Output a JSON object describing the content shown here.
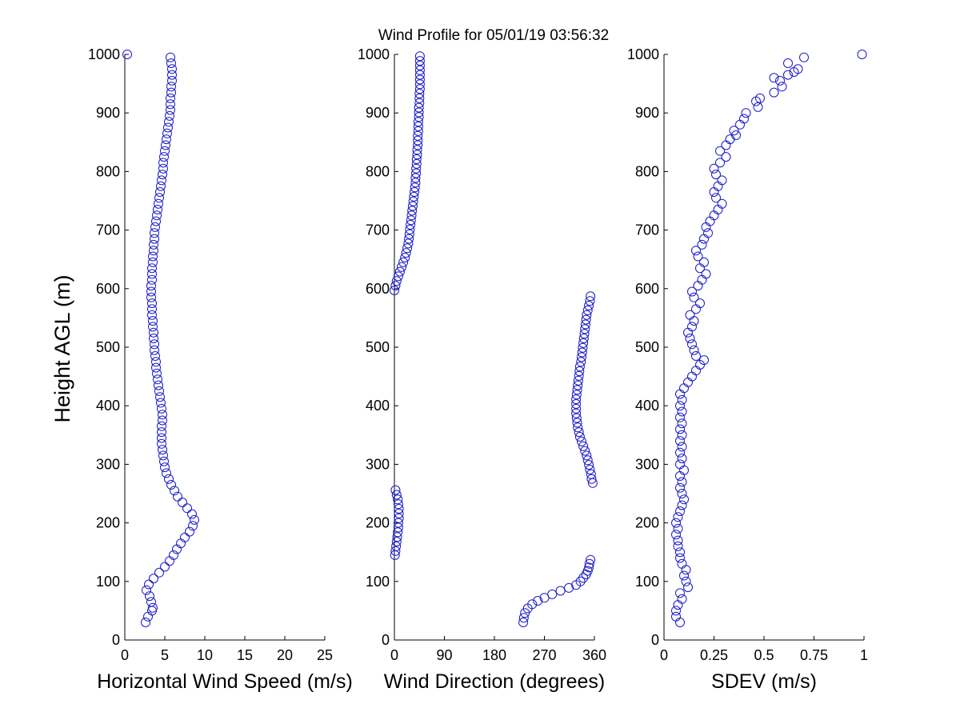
{
  "title": "Wind Profile for  05/01/19 03:56:32",
  "ylabel": "Height AGL (m)",
  "colors": {
    "marker": "#1a1ac8",
    "axis": "#000000",
    "background": "#ffffff"
  },
  "chart_data": [
    {
      "type": "scatter",
      "xlabel": "Horizontal Wind Speed (m/s)",
      "xlim": [
        0,
        25
      ],
      "ylim": [
        0,
        1000
      ],
      "xticks": [
        0,
        5,
        10,
        15,
        20,
        25
      ],
      "yticks": [
        0,
        100,
        200,
        300,
        400,
        500,
        600,
        700,
        800,
        900,
        1000
      ],
      "grid": false,
      "marker": "open-circle",
      "points": [
        [
          2.6,
          30
        ],
        [
          2.9,
          40
        ],
        [
          3.4,
          50
        ],
        [
          3.5,
          55
        ],
        [
          3.3,
          65
        ],
        [
          3.1,
          75
        ],
        [
          2.7,
          85
        ],
        [
          3.0,
          95
        ],
        [
          3.6,
          105
        ],
        [
          4.3,
          115
        ],
        [
          5.0,
          125
        ],
        [
          5.6,
          135
        ],
        [
          6.1,
          145
        ],
        [
          6.5,
          155
        ],
        [
          7.0,
          165
        ],
        [
          7.5,
          175
        ],
        [
          8.1,
          185
        ],
        [
          8.5,
          195
        ],
        [
          8.7,
          205
        ],
        [
          8.4,
          215
        ],
        [
          7.8,
          225
        ],
        [
          7.2,
          235
        ],
        [
          6.6,
          245
        ],
        [
          6.2,
          255
        ],
        [
          5.8,
          265
        ],
        [
          5.5,
          275
        ],
        [
          5.2,
          285
        ],
        [
          5.0,
          295
        ],
        [
          4.9,
          305
        ],
        [
          4.8,
          315
        ],
        [
          4.7,
          325
        ],
        [
          4.6,
          335
        ],
        [
          4.6,
          345
        ],
        [
          4.6,
          355
        ],
        [
          4.6,
          365
        ],
        [
          4.7,
          375
        ],
        [
          4.7,
          385
        ],
        [
          4.6,
          395
        ],
        [
          4.5,
          405
        ],
        [
          4.4,
          415
        ],
        [
          4.3,
          425
        ],
        [
          4.2,
          435
        ],
        [
          4.1,
          445
        ],
        [
          4.0,
          455
        ],
        [
          3.9,
          465
        ],
        [
          3.9,
          475
        ],
        [
          3.8,
          485
        ],
        [
          3.7,
          495
        ],
        [
          3.7,
          505
        ],
        [
          3.6,
          515
        ],
        [
          3.6,
          525
        ],
        [
          3.5,
          535
        ],
        [
          3.5,
          545
        ],
        [
          3.4,
          555
        ],
        [
          3.4,
          565
        ],
        [
          3.4,
          575
        ],
        [
          3.3,
          585
        ],
        [
          3.3,
          595
        ],
        [
          3.3,
          605
        ],
        [
          3.4,
          615
        ],
        [
          3.4,
          625
        ],
        [
          3.4,
          635
        ],
        [
          3.5,
          645
        ],
        [
          3.5,
          655
        ],
        [
          3.6,
          665
        ],
        [
          3.6,
          675
        ],
        [
          3.7,
          685
        ],
        [
          3.7,
          695
        ],
        [
          3.8,
          705
        ],
        [
          3.9,
          715
        ],
        [
          4.0,
          725
        ],
        [
          4.1,
          735
        ],
        [
          4.2,
          745
        ],
        [
          4.3,
          755
        ],
        [
          4.4,
          765
        ],
        [
          4.5,
          775
        ],
        [
          4.6,
          785
        ],
        [
          4.7,
          795
        ],
        [
          4.8,
          805
        ],
        [
          4.8,
          815
        ],
        [
          4.9,
          825
        ],
        [
          5.0,
          835
        ],
        [
          5.1,
          845
        ],
        [
          5.2,
          855
        ],
        [
          5.3,
          865
        ],
        [
          5.4,
          875
        ],
        [
          5.5,
          885
        ],
        [
          5.6,
          895
        ],
        [
          5.7,
          905
        ],
        [
          5.7,
          915
        ],
        [
          5.7,
          925
        ],
        [
          5.8,
          935
        ],
        [
          5.8,
          945
        ],
        [
          5.9,
          955
        ],
        [
          5.9,
          965
        ],
        [
          5.9,
          975
        ],
        [
          5.8,
          985
        ],
        [
          5.7,
          995
        ],
        [
          0.3,
          1000
        ]
      ]
    },
    {
      "type": "scatter",
      "xlabel": "Wind Direction (degrees)",
      "xlim": [
        0,
        360
      ],
      "ylim": [
        0,
        1000
      ],
      "xticks": [
        0,
        90,
        180,
        270,
        360
      ],
      "yticks": [
        0,
        100,
        200,
        300,
        400,
        500,
        600,
        700,
        800,
        900,
        1000
      ],
      "grid": false,
      "marker": "open-circle",
      "points": [
        [
          232,
          30
        ],
        [
          233,
          38
        ],
        [
          235,
          46
        ],
        [
          240,
          54
        ],
        [
          248,
          61
        ],
        [
          258,
          67
        ],
        [
          270,
          72
        ],
        [
          284,
          78
        ],
        [
          299,
          84
        ],
        [
          314,
          89
        ],
        [
          327,
          94
        ],
        [
          335,
          100
        ],
        [
          340,
          106
        ],
        [
          345,
          112
        ],
        [
          348,
          118
        ],
        [
          350,
          124
        ],
        [
          351,
          130
        ],
        [
          353,
          137
        ],
        [
          1,
          145
        ],
        [
          2,
          152
        ],
        [
          3,
          160
        ],
        [
          4,
          168
        ],
        [
          5,
          176
        ],
        [
          6,
          184
        ],
        [
          7,
          192
        ],
        [
          7,
          200
        ],
        [
          8,
          208
        ],
        [
          8,
          216
        ],
        [
          8,
          224
        ],
        [
          7,
          232
        ],
        [
          6,
          240
        ],
        [
          4,
          248
        ],
        [
          2,
          256
        ],
        [
          357,
          268
        ],
        [
          355,
          275
        ],
        [
          354,
          283
        ],
        [
          352,
          291
        ],
        [
          350,
          299
        ],
        [
          348,
          307
        ],
        [
          346,
          315
        ],
        [
          343,
          323
        ],
        [
          340,
          331
        ],
        [
          337,
          339
        ],
        [
          334,
          347
        ],
        [
          332,
          355
        ],
        [
          330,
          363
        ],
        [
          329,
          371
        ],
        [
          328,
          379
        ],
        [
          327,
          387
        ],
        [
          327,
          395
        ],
        [
          327,
          403
        ],
        [
          327,
          411
        ],
        [
          328,
          419
        ],
        [
          329,
          427
        ],
        [
          330,
          435
        ],
        [
          331,
          443
        ],
        [
          332,
          451
        ],
        [
          333,
          459
        ],
        [
          334,
          467
        ],
        [
          336,
          475
        ],
        [
          337,
          483
        ],
        [
          338,
          491
        ],
        [
          339,
          499
        ],
        [
          340,
          507
        ],
        [
          341,
          515
        ],
        [
          342,
          523
        ],
        [
          343,
          531
        ],
        [
          344,
          539
        ],
        [
          345,
          547
        ],
        [
          346,
          555
        ],
        [
          348,
          563
        ],
        [
          350,
          571
        ],
        [
          352,
          579
        ],
        [
          353,
          587
        ],
        [
          0,
          597
        ],
        [
          2,
          605
        ],
        [
          4,
          613
        ],
        [
          7,
          621
        ],
        [
          10,
          629
        ],
        [
          13,
          637
        ],
        [
          16,
          645
        ],
        [
          19,
          653
        ],
        [
          21,
          661
        ],
        [
          23,
          669
        ],
        [
          25,
          677
        ],
        [
          26,
          685
        ],
        [
          27,
          693
        ],
        [
          28,
          701
        ],
        [
          29,
          709
        ],
        [
          30,
          717
        ],
        [
          31,
          725
        ],
        [
          32,
          733
        ],
        [
          33,
          741
        ],
        [
          34,
          749
        ],
        [
          35,
          757
        ],
        [
          36,
          765
        ],
        [
          37,
          773
        ],
        [
          38,
          781
        ],
        [
          38,
          789
        ],
        [
          39,
          797
        ],
        [
          39,
          805
        ],
        [
          40,
          813
        ],
        [
          40,
          821
        ],
        [
          41,
          829
        ],
        [
          41,
          837
        ],
        [
          42,
          845
        ],
        [
          42,
          853
        ],
        [
          42,
          861
        ],
        [
          43,
          869
        ],
        [
          43,
          877
        ],
        [
          43,
          885
        ],
        [
          44,
          893
        ],
        [
          44,
          901
        ],
        [
          44,
          909
        ],
        [
          45,
          917
        ],
        [
          45,
          925
        ],
        [
          45,
          933
        ],
        [
          46,
          941
        ],
        [
          46,
          949
        ],
        [
          46,
          957
        ],
        [
          46,
          965
        ],
        [
          46,
          973
        ],
        [
          46,
          981
        ],
        [
          46,
          989
        ],
        [
          46,
          997
        ]
      ]
    },
    {
      "type": "scatter",
      "xlabel": "SDEV  (m/s)",
      "xlim": [
        0,
        1
      ],
      "ylim": [
        0,
        1000
      ],
      "xticks": [
        0,
        0.25,
        0.5,
        0.75,
        1
      ],
      "xticklabels": [
        "0",
        "0.25",
        "0.5",
        "0.75",
        "1"
      ],
      "yticks": [
        0,
        100,
        200,
        300,
        400,
        500,
        600,
        700,
        800,
        900,
        1000
      ],
      "grid": false,
      "marker": "open-circle",
      "points": [
        [
          0.08,
          30
        ],
        [
          0.06,
          40
        ],
        [
          0.06,
          50
        ],
        [
          0.07,
          60
        ],
        [
          0.09,
          70
        ],
        [
          0.08,
          80
        ],
        [
          0.12,
          90
        ],
        [
          0.11,
          100
        ],
        [
          0.1,
          110
        ],
        [
          0.11,
          120
        ],
        [
          0.09,
          130
        ],
        [
          0.08,
          140
        ],
        [
          0.08,
          150
        ],
        [
          0.07,
          160
        ],
        [
          0.07,
          170
        ],
        [
          0.06,
          180
        ],
        [
          0.07,
          190
        ],
        [
          0.06,
          200
        ],
        [
          0.07,
          210
        ],
        [
          0.08,
          220
        ],
        [
          0.09,
          230
        ],
        [
          0.1,
          240
        ],
        [
          0.09,
          250
        ],
        [
          0.08,
          260
        ],
        [
          0.09,
          270
        ],
        [
          0.08,
          280
        ],
        [
          0.1,
          290
        ],
        [
          0.08,
          300
        ],
        [
          0.09,
          310
        ],
        [
          0.08,
          320
        ],
        [
          0.09,
          330
        ],
        [
          0.08,
          340
        ],
        [
          0.09,
          350
        ],
        [
          0.08,
          360
        ],
        [
          0.09,
          370
        ],
        [
          0.08,
          380
        ],
        [
          0.09,
          390
        ],
        [
          0.08,
          400
        ],
        [
          0.09,
          410
        ],
        [
          0.08,
          420
        ],
        [
          0.1,
          430
        ],
        [
          0.12,
          440
        ],
        [
          0.14,
          450
        ],
        [
          0.16,
          460
        ],
        [
          0.18,
          470
        ],
        [
          0.2,
          478
        ],
        [
          0.16,
          485
        ],
        [
          0.15,
          495
        ],
        [
          0.14,
          505
        ],
        [
          0.13,
          515
        ],
        [
          0.12,
          525
        ],
        [
          0.14,
          535
        ],
        [
          0.15,
          545
        ],
        [
          0.13,
          555
        ],
        [
          0.16,
          565
        ],
        [
          0.18,
          575
        ],
        [
          0.15,
          585
        ],
        [
          0.14,
          595
        ],
        [
          0.17,
          605
        ],
        [
          0.19,
          615
        ],
        [
          0.21,
          625
        ],
        [
          0.18,
          635
        ],
        [
          0.2,
          645
        ],
        [
          0.17,
          655
        ],
        [
          0.16,
          665
        ],
        [
          0.19,
          675
        ],
        [
          0.2,
          685
        ],
        [
          0.22,
          695
        ],
        [
          0.21,
          705
        ],
        [
          0.23,
          715
        ],
        [
          0.25,
          725
        ],
        [
          0.27,
          735
        ],
        [
          0.29,
          745
        ],
        [
          0.26,
          755
        ],
        [
          0.25,
          765
        ],
        [
          0.27,
          775
        ],
        [
          0.29,
          785
        ],
        [
          0.26,
          795
        ],
        [
          0.25,
          805
        ],
        [
          0.28,
          815
        ],
        [
          0.31,
          825
        ],
        [
          0.28,
          835
        ],
        [
          0.31,
          845
        ],
        [
          0.33,
          855
        ],
        [
          0.36,
          862
        ],
        [
          0.35,
          870
        ],
        [
          0.38,
          880
        ],
        [
          0.4,
          890
        ],
        [
          0.41,
          900
        ],
        [
          0.47,
          910
        ],
        [
          0.46,
          920
        ],
        [
          0.48,
          925
        ],
        [
          0.55,
          935
        ],
        [
          0.59,
          945
        ],
        [
          0.58,
          955
        ],
        [
          0.55,
          960
        ],
        [
          0.62,
          965
        ],
        [
          0.65,
          970
        ],
        [
          0.67,
          975
        ],
        [
          0.62,
          985
        ],
        [
          0.7,
          995
        ],
        [
          0.99,
          1000
        ]
      ]
    }
  ]
}
